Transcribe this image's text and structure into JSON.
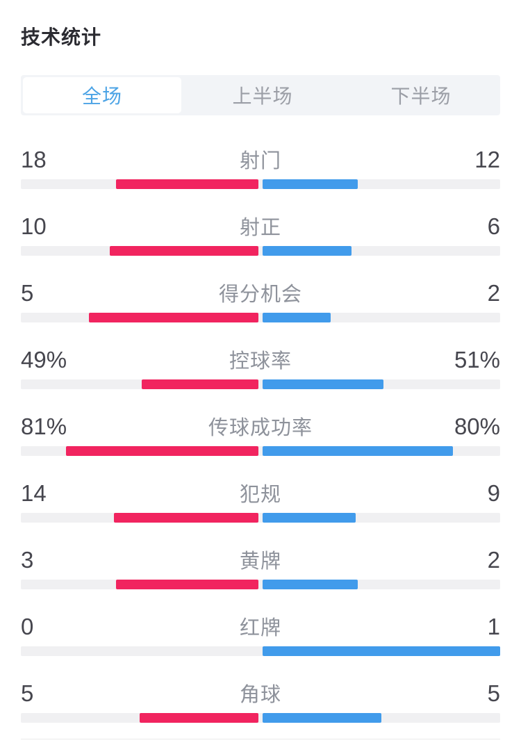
{
  "page": {
    "title": "技术统计"
  },
  "tabs": [
    {
      "label": "全场",
      "active": true
    },
    {
      "label": "上半场",
      "active": false
    },
    {
      "label": "下半场",
      "active": false
    }
  ],
  "colors": {
    "home_bar": "#f1245f",
    "away_bar": "#419beb",
    "bar_track": "#f0f0f2",
    "active_tab_text": "#4ba3e5"
  },
  "stats": {
    "rows": [
      {
        "label": "射门",
        "home": "18",
        "away": "12"
      },
      {
        "label": "射正",
        "home": "10",
        "away": "6"
      },
      {
        "label": "得分机会",
        "home": "5",
        "away": "2"
      },
      {
        "label": "控球率",
        "home": "49%",
        "away": "51%"
      },
      {
        "label": "传球成功率",
        "home": "81%",
        "away": "80%"
      },
      {
        "label": "犯规",
        "home": "14",
        "away": "9"
      },
      {
        "label": "黄牌",
        "home": "3",
        "away": "2"
      },
      {
        "label": "红牌",
        "home": "0",
        "away": "1"
      },
      {
        "label": "角球",
        "home": "5",
        "away": "5"
      }
    ]
  }
}
